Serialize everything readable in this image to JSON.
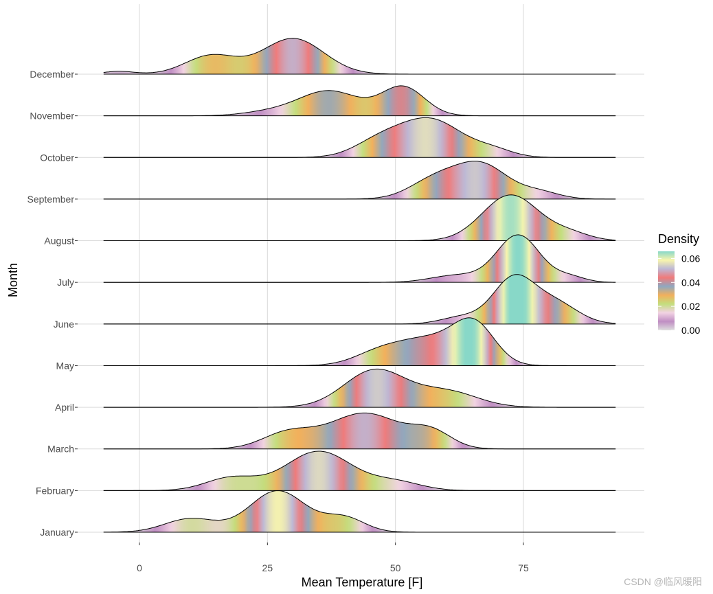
{
  "chart_data": {
    "type": "ridgeline",
    "xlabel": "Mean Temperature [F]",
    "ylabel": "Month",
    "xlim": [
      -14,
      99
    ],
    "x_ticks": [
      0,
      25,
      50,
      75
    ],
    "x_tick_labels": [
      "0",
      "25",
      "50",
      "75"
    ],
    "grid": "vertical major lines only",
    "legend": {
      "title": "Density",
      "position": "right",
      "ticks": [
        0.0,
        0.02,
        0.04,
        0.06
      ],
      "labels": [
        "0.00",
        "0.02",
        "0.04",
        "0.06"
      ],
      "colors": [
        "#dddddd",
        "#c08ec3",
        "#f2d3e3",
        "#c3de7e",
        "#f2b05c",
        "#8fa8c0",
        "#f07a7a",
        "#bdb8d6",
        "#f8f5ad",
        "#88d8c8"
      ],
      "range": [
        0.0,
        0.066
      ]
    },
    "data_range": [
      -7,
      93
    ],
    "series": [
      {
        "name": "January",
        "peaks": [
          [
            10,
            0.019,
            5
          ],
          [
            27,
            0.058,
            5.5
          ],
          [
            40,
            0.02,
            4
          ]
        ]
      },
      {
        "name": "February",
        "peaks": [
          [
            18,
            0.018,
            5
          ],
          [
            35,
            0.055,
            6.5
          ],
          [
            50,
            0.012,
            5
          ]
        ]
      },
      {
        "name": "March",
        "peaks": [
          [
            29,
            0.022,
            5
          ],
          [
            44,
            0.05,
            7
          ],
          [
            57,
            0.022,
            4
          ]
        ]
      },
      {
        "name": "April",
        "peaks": [
          [
            46,
            0.052,
            6
          ],
          [
            60,
            0.022,
            6
          ]
        ]
      },
      {
        "name": "May",
        "peaks": [
          [
            47,
            0.018,
            5
          ],
          [
            57,
            0.036,
            6
          ],
          [
            65.5,
            0.052,
            4
          ]
        ]
      },
      {
        "name": "June",
        "peaks": [
          [
            73,
            0.062,
            4
          ],
          [
            81,
            0.03,
            4.5
          ],
          [
            63,
            0.01,
            4
          ]
        ]
      },
      {
        "name": "July",
        "peaks": [
          [
            74,
            0.066,
            4.2
          ],
          [
            62,
            0.01,
            5
          ],
          [
            84,
            0.008,
            3
          ]
        ]
      },
      {
        "name": "August",
        "peaks": [
          [
            72.5,
            0.064,
            5.5
          ],
          [
            84,
            0.01,
            4
          ]
        ]
      },
      {
        "name": "September",
        "peaks": [
          [
            58,
            0.028,
            5
          ],
          [
            67,
            0.046,
            5
          ],
          [
            78,
            0.01,
            4
          ]
        ]
      },
      {
        "name": "October",
        "peaks": [
          [
            47,
            0.022,
            5
          ],
          [
            57,
            0.052,
            6
          ],
          [
            69,
            0.01,
            4
          ]
        ]
      },
      {
        "name": "November",
        "peaks": [
          [
            37,
            0.035,
            6
          ],
          [
            51.5,
            0.04,
            4.2
          ],
          [
            25,
            0.005,
            5
          ]
        ]
      },
      {
        "name": "December",
        "peaks": [
          [
            14,
            0.026,
            5
          ],
          [
            30,
            0.05,
            6
          ],
          [
            -4,
            0.004,
            3
          ]
        ]
      }
    ]
  },
  "watermark": "CSDN @临风暖阳"
}
